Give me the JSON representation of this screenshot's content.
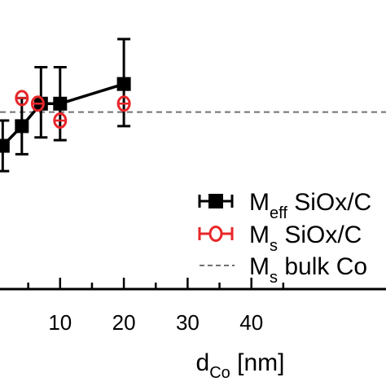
{
  "chart_data": {
    "type": "scatter",
    "xlabel": {
      "main": "d",
      "sub": "Co",
      "rest": " [nm]"
    },
    "ylabel": "",
    "x_ticks": [
      10,
      20,
      30,
      40
    ],
    "xlim": [
      0,
      46
    ],
    "ylim": [
      0.0,
      1.0
    ],
    "grid": false,
    "legend_placement": "lower-right",
    "series": [
      {
        "name": "Meff SiOx/C",
        "legend": {
          "main": "M",
          "sub": "eff",
          "rest": " SiOx/C"
        },
        "marker": "filled-square",
        "color": "#000000",
        "connected": true,
        "x": [
          1,
          4,
          7,
          10,
          20
        ],
        "y": [
          0.51,
          0.58,
          0.66,
          0.66,
          0.73
        ],
        "err_high": [
          0.6,
          0.68,
          0.79,
          0.79,
          0.89
        ],
        "err_low": [
          0.42,
          0.48,
          0.54,
          0.53,
          0.58
        ]
      },
      {
        "name": "Ms SiOx/C",
        "legend": {
          "main": "M",
          "sub": "s",
          "rest": " SiOx/C"
        },
        "marker": "open-circle",
        "color": "#e8262a",
        "connected": false,
        "x": [
          4,
          6.5,
          10,
          20
        ],
        "y": [
          0.68,
          0.66,
          0.6,
          0.66
        ]
      },
      {
        "name": "Ms bulk Co",
        "legend": {
          "main": "M",
          "sub": "s",
          "rest": " bulk Co"
        },
        "line_style": "dashed",
        "color": "#707070",
        "y_value": 0.63
      }
    ]
  }
}
